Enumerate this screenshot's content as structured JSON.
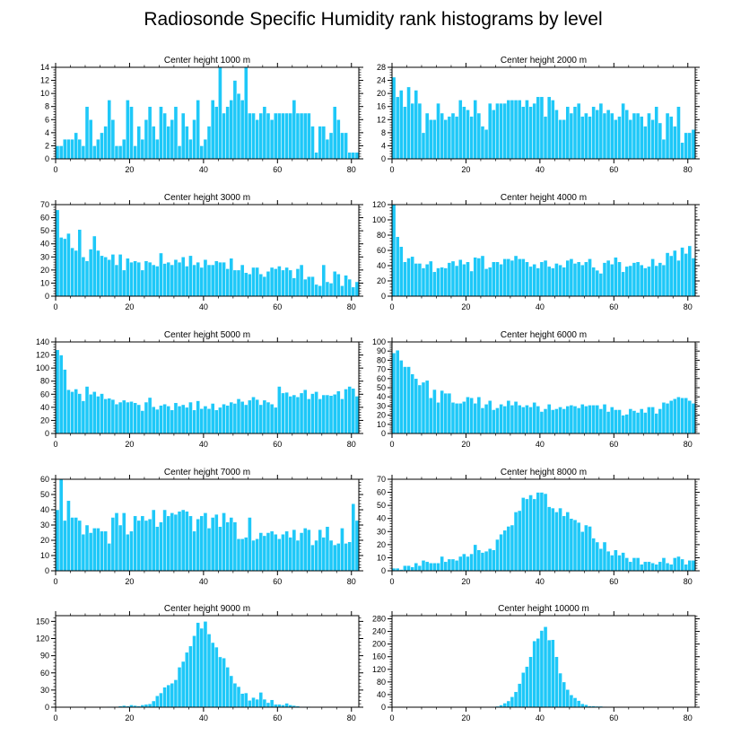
{
  "title": "Radiosonde Specific Humidity rank histograms by level",
  "colors": {
    "bar": "#1ec8f8",
    "bar_edge": "#ffffff",
    "axis": "#000000"
  },
  "chart_data": [
    {
      "type": "bar",
      "title": "Center height 1000 m",
      "xlim": [
        0,
        82
      ],
      "ylim": [
        0,
        14
      ],
      "xticks": [
        0,
        20,
        40,
        60,
        80
      ],
      "yticks": [
        0,
        2,
        4,
        6,
        8,
        10,
        12,
        14
      ],
      "values": [
        2,
        2,
        3,
        3,
        3,
        4,
        3,
        2,
        8,
        6,
        2,
        3,
        4,
        5,
        9,
        6,
        2,
        2,
        3,
        9,
        8,
        2,
        5,
        3,
        6,
        8,
        5,
        3,
        8,
        7,
        5,
        6,
        8,
        2,
        7,
        5,
        3,
        6,
        9,
        2,
        3,
        5,
        9,
        8,
        14,
        7,
        8,
        9,
        12,
        10,
        9,
        14,
        7,
        7,
        6,
        7,
        8,
        7,
        6,
        7,
        7,
        7,
        7,
        7,
        9,
        7,
        7,
        7,
        7,
        5,
        1,
        5,
        5,
        3,
        4,
        8,
        6,
        4,
        4,
        1,
        1,
        1
      ]
    },
    {
      "type": "bar",
      "title": "Center height 2000 m",
      "xlim": [
        0,
        82
      ],
      "ylim": [
        0,
        28
      ],
      "xticks": [
        0,
        20,
        40,
        60,
        80
      ],
      "yticks": [
        0,
        4,
        8,
        12,
        16,
        20,
        24,
        28
      ],
      "values": [
        25,
        19,
        21,
        16,
        22,
        17,
        21,
        17,
        8,
        14,
        12,
        12,
        17,
        14,
        12,
        13,
        14,
        13,
        18,
        16,
        15,
        13,
        18,
        14,
        10,
        9,
        17,
        15,
        17,
        17,
        17,
        18,
        18,
        18,
        18,
        16,
        18,
        16,
        17,
        19,
        19,
        13,
        19,
        18,
        15,
        12,
        12,
        16,
        14,
        16,
        17,
        13,
        14,
        13,
        16,
        15,
        17,
        14,
        15,
        14,
        12,
        13,
        17,
        15,
        12,
        14,
        14,
        13,
        10,
        14,
        12,
        16,
        11,
        6,
        14,
        13,
        10,
        16,
        5,
        8,
        8,
        9
      ]
    },
    {
      "type": "bar",
      "title": "Center height 3000 m",
      "xlim": [
        0,
        82
      ],
      "ylim": [
        0,
        70
      ],
      "xticks": [
        0,
        20,
        40,
        60,
        80
      ],
      "yticks": [
        0,
        10,
        20,
        30,
        40,
        50,
        60,
        70
      ],
      "values": [
        66,
        45,
        44,
        48,
        37,
        35,
        51,
        30,
        27,
        36,
        46,
        35,
        31,
        30,
        28,
        32,
        24,
        32,
        20,
        29,
        26,
        27,
        26,
        20,
        27,
        26,
        24,
        23,
        33,
        25,
        26,
        24,
        28,
        26,
        30,
        23,
        31,
        24,
        26,
        22,
        28,
        24,
        24,
        27,
        26,
        26,
        21,
        29,
        20,
        20,
        24,
        18,
        17,
        22,
        22,
        17,
        15,
        19,
        22,
        21,
        23,
        20,
        22,
        20,
        14,
        21,
        24,
        13,
        15,
        15,
        9,
        8,
        24,
        11,
        10,
        19,
        17,
        8,
        16,
        13,
        7,
        11
      ]
    },
    {
      "type": "bar",
      "title": "Center height 4000 m",
      "xlim": [
        0,
        82
      ],
      "ylim": [
        0,
        120
      ],
      "xticks": [
        0,
        20,
        40,
        60,
        80
      ],
      "yticks": [
        0,
        20,
        40,
        60,
        80,
        100,
        120
      ],
      "values": [
        120,
        78,
        65,
        45,
        50,
        52,
        43,
        43,
        37,
        42,
        46,
        32,
        37,
        38,
        37,
        44,
        46,
        40,
        48,
        42,
        45,
        33,
        51,
        50,
        53,
        36,
        38,
        45,
        45,
        42,
        49,
        49,
        47,
        53,
        49,
        49,
        45,
        39,
        42,
        37,
        45,
        47,
        39,
        37,
        43,
        41,
        38,
        47,
        49,
        43,
        45,
        41,
        45,
        49,
        38,
        34,
        30,
        44,
        47,
        42,
        51,
        45,
        32,
        39,
        40,
        44,
        45,
        41,
        37,
        39,
        49,
        40,
        44,
        41,
        57,
        53,
        60,
        47,
        64,
        56,
        66,
        50
      ]
    },
    {
      "type": "bar",
      "title": "Center height 5000 m",
      "xlim": [
        0,
        82
      ],
      "ylim": [
        0,
        140
      ],
      "xticks": [
        0,
        20,
        40,
        60,
        80
      ],
      "yticks": [
        0,
        20,
        40,
        60,
        80,
        100,
        120,
        140
      ],
      "values": [
        128,
        120,
        98,
        67,
        64,
        68,
        61,
        50,
        72,
        60,
        64,
        57,
        61,
        53,
        54,
        52,
        45,
        48,
        51,
        48,
        49,
        47,
        44,
        35,
        48,
        55,
        41,
        37,
        43,
        45,
        42,
        36,
        47,
        42,
        44,
        40,
        48,
        36,
        50,
        38,
        42,
        38,
        46,
        36,
        40,
        45,
        43,
        48,
        46,
        53,
        49,
        44,
        51,
        56,
        52,
        44,
        51,
        48,
        45,
        40,
        72,
        62,
        63,
        57,
        59,
        56,
        62,
        67,
        53,
        61,
        64,
        53,
        59,
        59,
        58,
        60,
        65,
        53,
        68,
        72,
        69,
        57
      ]
    },
    {
      "type": "bar",
      "title": "Center height 6000 m",
      "xlim": [
        0,
        82
      ],
      "ylim": [
        0,
        100
      ],
      "xticks": [
        0,
        20,
        40,
        60,
        80
      ],
      "yticks": [
        0,
        10,
        20,
        30,
        40,
        50,
        60,
        70,
        80,
        90,
        100
      ],
      "values": [
        88,
        91,
        80,
        73,
        73,
        65,
        60,
        53,
        56,
        58,
        39,
        48,
        34,
        47,
        44,
        44,
        34,
        33,
        33,
        35,
        40,
        39,
        33,
        40,
        28,
        32,
        36,
        26,
        28,
        32,
        30,
        36,
        31,
        35,
        31,
        29,
        31,
        29,
        34,
        30,
        24,
        27,
        32,
        26,
        27,
        29,
        27,
        30,
        31,
        30,
        28,
        32,
        30,
        31,
        31,
        31,
        27,
        32,
        24,
        29,
        26,
        26,
        20,
        21,
        27,
        25,
        23,
        27,
        23,
        29,
        29,
        22,
        27,
        34,
        33,
        36,
        38,
        40,
        39,
        39,
        36,
        33
      ]
    },
    {
      "type": "bar",
      "title": "Center height 7000 m",
      "xlim": [
        0,
        82
      ],
      "ylim": [
        0,
        60
      ],
      "xticks": [
        0,
        20,
        40,
        60,
        80
      ],
      "yticks": [
        0,
        10,
        20,
        30,
        40,
        50,
        60
      ],
      "values": [
        40,
        60,
        33,
        46,
        35,
        35,
        33,
        24,
        30,
        25,
        28,
        28,
        26,
        26,
        18,
        35,
        38,
        30,
        38,
        24,
        26,
        36,
        33,
        36,
        33,
        34,
        40,
        29,
        32,
        40,
        36,
        38,
        37,
        39,
        40,
        39,
        36,
        26,
        34,
        36,
        38,
        28,
        35,
        37,
        29,
        38,
        32,
        35,
        32,
        21,
        21,
        22,
        35,
        20,
        21,
        25,
        23,
        25,
        26,
        24,
        21,
        24,
        26,
        22,
        27,
        20,
        25,
        28,
        27,
        17,
        20,
        27,
        22,
        29,
        20,
        17,
        18,
        28,
        18,
        19,
        44,
        33
      ]
    },
    {
      "type": "bar",
      "title": "Center height 8000 m",
      "xlim": [
        0,
        82
      ],
      "ylim": [
        0,
        70
      ],
      "xticks": [
        0,
        20,
        40,
        60,
        80
      ],
      "yticks": [
        0,
        10,
        20,
        30,
        40,
        50,
        60,
        70
      ],
      "values": [
        2,
        2,
        1,
        4,
        4,
        3,
        6,
        4,
        8,
        7,
        6,
        6,
        6,
        11,
        7,
        9,
        9,
        8,
        11,
        13,
        11,
        13,
        20,
        16,
        14,
        15,
        17,
        16,
        24,
        28,
        31,
        34,
        35,
        45,
        46,
        56,
        55,
        58,
        55,
        60,
        60,
        59,
        49,
        48,
        45,
        48,
        42,
        45,
        40,
        39,
        37,
        30,
        35,
        34,
        25,
        22,
        17,
        22,
        15,
        12,
        16,
        12,
        14,
        10,
        7,
        10,
        10,
        5,
        7,
        7,
        6,
        5,
        7,
        10,
        6,
        5,
        10,
        11,
        9,
        5,
        8,
        8
      ]
    },
    {
      "type": "bar",
      "title": "Center height 9000 m",
      "xlim": [
        0,
        82
      ],
      "ylim": [
        0,
        160
      ],
      "xticks": [
        0,
        20,
        40,
        60,
        80
      ],
      "yticks": [
        0,
        30,
        60,
        90,
        120,
        150
      ],
      "values": [
        0,
        0,
        0,
        0,
        0,
        0,
        0,
        0,
        0,
        0,
        0,
        0,
        0,
        0,
        1,
        1,
        1,
        2,
        3,
        2,
        4,
        3,
        2,
        4,
        5,
        6,
        11,
        20,
        25,
        35,
        39,
        42,
        48,
        70,
        80,
        96,
        107,
        125,
        148,
        138,
        150,
        128,
        113,
        105,
        88,
        86,
        70,
        55,
        42,
        36,
        24,
        25,
        12,
        17,
        14,
        26,
        14,
        8,
        13,
        5,
        5,
        4,
        7,
        4,
        3,
        2,
        1,
        1,
        1,
        0,
        0,
        0,
        0,
        0,
        0,
        0,
        0,
        0,
        0,
        0,
        0,
        0
      ]
    },
    {
      "type": "bar",
      "title": "Center height 10000 m",
      "xlim": [
        0,
        82
      ],
      "ylim": [
        0,
        290
      ],
      "xticks": [
        0,
        20,
        40,
        60,
        80
      ],
      "yticks": [
        0,
        40,
        80,
        120,
        160,
        200,
        240,
        280
      ],
      "values": [
        0,
        0,
        0,
        0,
        0,
        0,
        0,
        0,
        0,
        0,
        0,
        0,
        0,
        0,
        0,
        0,
        0,
        0,
        0,
        0,
        0,
        0,
        0,
        0,
        0,
        0,
        1,
        2,
        3,
        7,
        13,
        20,
        33,
        49,
        75,
        110,
        129,
        160,
        210,
        218,
        243,
        255,
        213,
        214,
        160,
        108,
        80,
        56,
        39,
        30,
        21,
        11,
        8,
        4,
        4,
        3,
        3,
        2,
        1,
        1,
        1,
        0,
        0,
        0,
        0,
        0,
        0,
        0,
        0,
        0,
        0,
        0,
        0,
        0,
        0,
        0,
        0,
        0,
        0,
        0,
        0,
        0
      ]
    }
  ]
}
